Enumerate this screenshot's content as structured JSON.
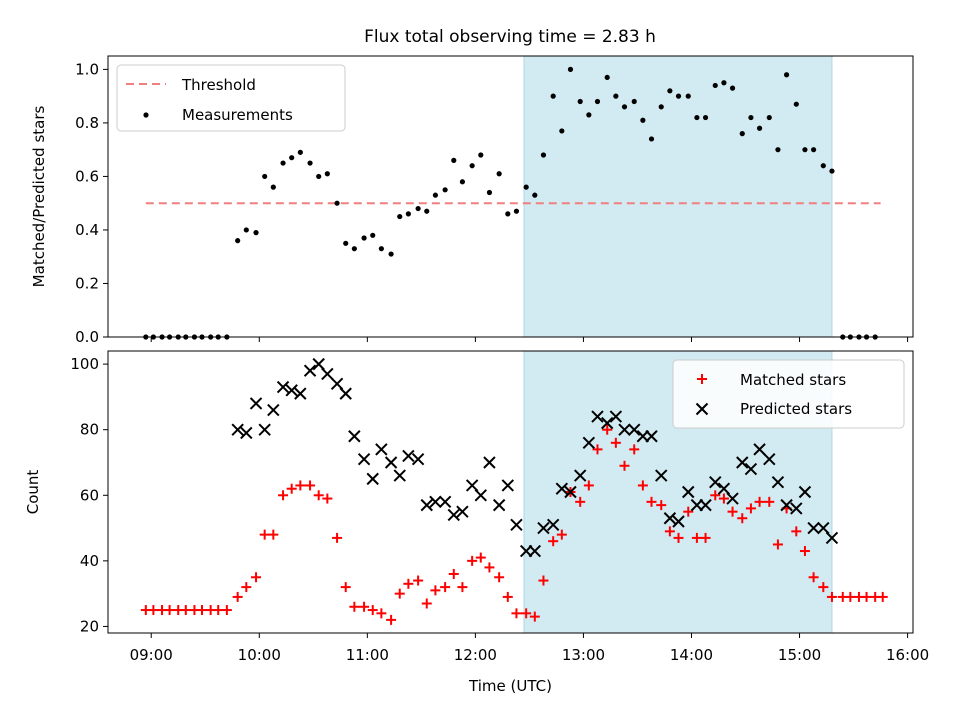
{
  "title": "Flux total observing time = 2.83 h",
  "colors": {
    "highlight": "#add8e6",
    "threshold": "#f08080",
    "measurements": "#000000",
    "matched": "#ff0000",
    "predicted": "#000000"
  },
  "chart_data": [
    {
      "type": "scatter",
      "ylabel": "Matched/Predicted stars",
      "xlim": [
        8.6,
        16.05
      ],
      "ylim": [
        0,
        1.05
      ],
      "yticks": [
        "0.0",
        "0.2",
        "0.4",
        "0.6",
        "0.8",
        "1.0"
      ],
      "ytick_values": [
        0,
        0.2,
        0.4,
        0.6,
        0.8,
        1.0
      ],
      "highlight_span": [
        12.45,
        15.3
      ],
      "legend_position": "top-left",
      "series": [
        {
          "name": "Threshold",
          "kind": "dashed-line",
          "x": [
            8.95,
            15.75
          ],
          "y": [
            0.5,
            0.5
          ]
        },
        {
          "name": "Measurements",
          "kind": "dots",
          "points": [
            [
              8.95,
              0.0
            ],
            [
              9.02,
              0.0
            ],
            [
              9.1,
              0.0
            ],
            [
              9.17,
              0.0
            ],
            [
              9.25,
              0.0
            ],
            [
              9.32,
              0.0
            ],
            [
              9.4,
              0.0
            ],
            [
              9.47,
              0.0
            ],
            [
              9.55,
              0.0
            ],
            [
              9.62,
              0.0
            ],
            [
              9.7,
              0.0
            ],
            [
              9.8,
              0.36
            ],
            [
              9.88,
              0.4
            ],
            [
              9.97,
              0.39
            ],
            [
              10.05,
              0.6
            ],
            [
              10.13,
              0.56
            ],
            [
              10.22,
              0.65
            ],
            [
              10.3,
              0.67
            ],
            [
              10.38,
              0.69
            ],
            [
              10.47,
              0.65
            ],
            [
              10.55,
              0.6
            ],
            [
              10.63,
              0.61
            ],
            [
              10.72,
              0.5
            ],
            [
              10.8,
              0.35
            ],
            [
              10.88,
              0.33
            ],
            [
              10.97,
              0.37
            ],
            [
              11.05,
              0.38
            ],
            [
              11.13,
              0.33
            ],
            [
              11.22,
              0.31
            ],
            [
              11.3,
              0.45
            ],
            [
              11.38,
              0.46
            ],
            [
              11.47,
              0.48
            ],
            [
              11.55,
              0.47
            ],
            [
              11.63,
              0.53
            ],
            [
              11.72,
              0.55
            ],
            [
              11.8,
              0.66
            ],
            [
              11.88,
              0.58
            ],
            [
              11.97,
              0.64
            ],
            [
              12.05,
              0.68
            ],
            [
              12.13,
              0.54
            ],
            [
              12.22,
              0.61
            ],
            [
              12.3,
              0.46
            ],
            [
              12.38,
              0.47
            ],
            [
              12.47,
              0.56
            ],
            [
              12.55,
              0.53
            ],
            [
              12.63,
              0.68
            ],
            [
              12.72,
              0.9
            ],
            [
              12.8,
              0.77
            ],
            [
              12.88,
              1.0
            ],
            [
              12.97,
              0.88
            ],
            [
              13.05,
              0.83
            ],
            [
              13.13,
              0.88
            ],
            [
              13.22,
              0.97
            ],
            [
              13.3,
              0.9
            ],
            [
              13.38,
              0.86
            ],
            [
              13.47,
              0.88
            ],
            [
              13.55,
              0.81
            ],
            [
              13.63,
              0.74
            ],
            [
              13.72,
              0.86
            ],
            [
              13.8,
              0.92
            ],
            [
              13.88,
              0.9
            ],
            [
              13.97,
              0.9
            ],
            [
              14.05,
              0.82
            ],
            [
              14.13,
              0.82
            ],
            [
              14.22,
              0.94
            ],
            [
              14.3,
              0.95
            ],
            [
              14.38,
              0.93
            ],
            [
              14.47,
              0.76
            ],
            [
              14.55,
              0.82
            ],
            [
              14.63,
              0.78
            ],
            [
              14.72,
              0.82
            ],
            [
              14.8,
              0.7
            ],
            [
              14.88,
              0.98
            ],
            [
              14.97,
              0.87
            ],
            [
              15.05,
              0.7
            ],
            [
              15.13,
              0.7
            ],
            [
              15.22,
              0.64
            ],
            [
              15.3,
              0.62
            ],
            [
              15.4,
              0.0
            ],
            [
              15.47,
              0.0
            ],
            [
              15.55,
              0.0
            ],
            [
              15.62,
              0.0
            ],
            [
              15.7,
              0.0
            ]
          ]
        }
      ]
    },
    {
      "type": "scatter",
      "xlabel": "Time (UTC)",
      "ylabel": "Count",
      "xlim": [
        8.6,
        16.05
      ],
      "ylim": [
        18,
        104
      ],
      "xticks": [
        "09:00",
        "10:00",
        "11:00",
        "12:00",
        "13:00",
        "14:00",
        "15:00",
        "16:00"
      ],
      "xtick_values": [
        9,
        10,
        11,
        12,
        13,
        14,
        15,
        16
      ],
      "yticks": [
        "20",
        "40",
        "60",
        "80",
        "100"
      ],
      "ytick_values": [
        20,
        40,
        60,
        80,
        100
      ],
      "highlight_span": [
        12.45,
        15.3
      ],
      "legend_position": "top-right",
      "series": [
        {
          "name": "Matched stars",
          "kind": "plus",
          "points": [
            [
              8.95,
              25
            ],
            [
              9.02,
              25
            ],
            [
              9.1,
              25
            ],
            [
              9.17,
              25
            ],
            [
              9.25,
              25
            ],
            [
              9.32,
              25
            ],
            [
              9.4,
              25
            ],
            [
              9.47,
              25
            ],
            [
              9.55,
              25
            ],
            [
              9.62,
              25
            ],
            [
              9.7,
              25
            ],
            [
              9.8,
              29
            ],
            [
              9.88,
              32
            ],
            [
              9.97,
              35
            ],
            [
              10.05,
              48
            ],
            [
              10.13,
              48
            ],
            [
              10.22,
              60
            ],
            [
              10.3,
              62
            ],
            [
              10.38,
              63
            ],
            [
              10.47,
              63
            ],
            [
              10.55,
              60
            ],
            [
              10.63,
              59
            ],
            [
              10.72,
              47
            ],
            [
              10.8,
              32
            ],
            [
              10.88,
              26
            ],
            [
              10.97,
              26
            ],
            [
              11.05,
              25
            ],
            [
              11.13,
              24
            ],
            [
              11.22,
              22
            ],
            [
              11.3,
              30
            ],
            [
              11.38,
              33
            ],
            [
              11.47,
              34
            ],
            [
              11.55,
              27
            ],
            [
              11.63,
              31
            ],
            [
              11.72,
              32
            ],
            [
              11.8,
              36
            ],
            [
              11.88,
              32
            ],
            [
              11.97,
              40
            ],
            [
              12.05,
              41
            ],
            [
              12.13,
              38
            ],
            [
              12.22,
              35
            ],
            [
              12.3,
              29
            ],
            [
              12.38,
              24
            ],
            [
              12.47,
              24
            ],
            [
              12.55,
              23
            ],
            [
              12.63,
              34
            ],
            [
              12.72,
              46
            ],
            [
              12.8,
              48
            ],
            [
              12.88,
              61
            ],
            [
              12.97,
              58
            ],
            [
              13.05,
              63
            ],
            [
              13.13,
              74
            ],
            [
              13.22,
              80
            ],
            [
              13.3,
              76
            ],
            [
              13.38,
              69
            ],
            [
              13.47,
              74
            ],
            [
              13.55,
              63
            ],
            [
              13.63,
              58
            ],
            [
              13.72,
              57
            ],
            [
              13.8,
              49
            ],
            [
              13.88,
              47
            ],
            [
              13.97,
              55
            ],
            [
              14.05,
              47
            ],
            [
              14.13,
              47
            ],
            [
              14.22,
              60
            ],
            [
              14.3,
              59
            ],
            [
              14.38,
              55
            ],
            [
              14.47,
              53
            ],
            [
              14.55,
              56
            ],
            [
              14.63,
              58
            ],
            [
              14.72,
              58
            ],
            [
              14.8,
              45
            ],
            [
              14.88,
              56
            ],
            [
              14.97,
              49
            ],
            [
              15.05,
              43
            ],
            [
              15.13,
              35
            ],
            [
              15.22,
              32
            ],
            [
              15.3,
              29
            ],
            [
              15.4,
              29
            ],
            [
              15.47,
              29
            ],
            [
              15.55,
              29
            ],
            [
              15.62,
              29
            ],
            [
              15.7,
              29
            ],
            [
              15.77,
              29
            ]
          ]
        },
        {
          "name": "Predicted stars",
          "kind": "cross",
          "points": [
            [
              9.8,
              80
            ],
            [
              9.88,
              79
            ],
            [
              9.97,
              88
            ],
            [
              10.05,
              80
            ],
            [
              10.13,
              86
            ],
            [
              10.22,
              93
            ],
            [
              10.3,
              92
            ],
            [
              10.38,
              91
            ],
            [
              10.47,
              98
            ],
            [
              10.55,
              100
            ],
            [
              10.63,
              97
            ],
            [
              10.72,
              94
            ],
            [
              10.8,
              91
            ],
            [
              10.88,
              78
            ],
            [
              10.97,
              71
            ],
            [
              11.05,
              65
            ],
            [
              11.13,
              74
            ],
            [
              11.22,
              70
            ],
            [
              11.3,
              66
            ],
            [
              11.38,
              72
            ],
            [
              11.47,
              71
            ],
            [
              11.55,
              57
            ],
            [
              11.63,
              58
            ],
            [
              11.72,
              58
            ],
            [
              11.8,
              54
            ],
            [
              11.88,
              55
            ],
            [
              11.97,
              63
            ],
            [
              12.05,
              60
            ],
            [
              12.13,
              70
            ],
            [
              12.22,
              57
            ],
            [
              12.3,
              63
            ],
            [
              12.38,
              51
            ],
            [
              12.47,
              43
            ],
            [
              12.55,
              43
            ],
            [
              12.63,
              50
            ],
            [
              12.72,
              51
            ],
            [
              12.8,
              62
            ],
            [
              12.88,
              61
            ],
            [
              12.97,
              66
            ],
            [
              13.05,
              76
            ],
            [
              13.13,
              84
            ],
            [
              13.22,
              82
            ],
            [
              13.3,
              84
            ],
            [
              13.38,
              80
            ],
            [
              13.47,
              80
            ],
            [
              13.55,
              78
            ],
            [
              13.63,
              78
            ],
            [
              13.72,
              66
            ],
            [
              13.8,
              53
            ],
            [
              13.88,
              52
            ],
            [
              13.97,
              61
            ],
            [
              14.05,
              57
            ],
            [
              14.13,
              57
            ],
            [
              14.22,
              64
            ],
            [
              14.3,
              62
            ],
            [
              14.38,
              59
            ],
            [
              14.47,
              70
            ],
            [
              14.55,
              68
            ],
            [
              14.63,
              74
            ],
            [
              14.72,
              71
            ],
            [
              14.8,
              64
            ],
            [
              14.88,
              57
            ],
            [
              14.97,
              56
            ],
            [
              15.05,
              61
            ],
            [
              15.13,
              50
            ],
            [
              15.22,
              50
            ],
            [
              15.3,
              47
            ]
          ]
        }
      ]
    }
  ]
}
